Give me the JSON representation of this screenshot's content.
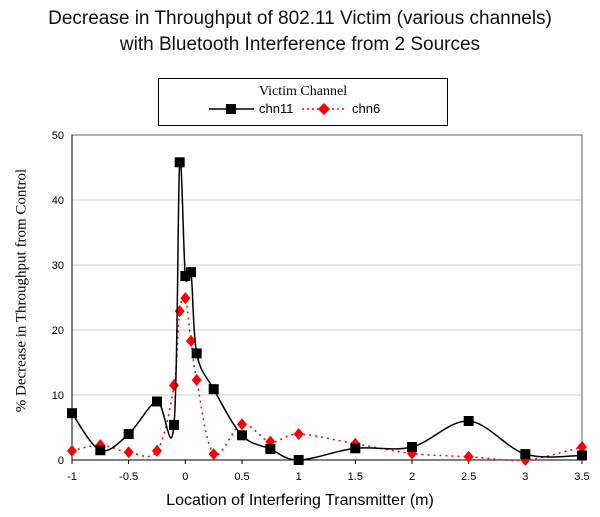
{
  "chart_data": {
    "type": "line",
    "title": [
      "Decrease in Throughput of 802.11 Victim (various channels)",
      "with Bluetooth Interference from 2 Sources"
    ],
    "xlabel": "Location of Interfering Transmitter (m)",
    "ylabel": "% Decrease in Throughput from Control",
    "legend_title": "Victim Channel",
    "legend_position": "top-center",
    "xlim": [
      -1,
      3.5
    ],
    "ylim": [
      0,
      50
    ],
    "xticks": [
      "-1",
      "-0.5",
      "0",
      "0.5",
      "1",
      "1.5",
      "2",
      "2.5",
      "3",
      "3.5"
    ],
    "xtick_values": [
      -1,
      -0.5,
      0,
      0.5,
      1,
      1.5,
      2,
      2.5,
      3,
      3.5
    ],
    "yticks": [
      "0",
      "10",
      "20",
      "30",
      "40",
      "50"
    ],
    "ytick_values": [
      0,
      10,
      20,
      30,
      40,
      50
    ],
    "grid": "horizontal",
    "x": [
      -1,
      -0.75,
      -0.5,
      -0.25,
      -0.1,
      -0.05,
      0,
      0.05,
      0.1,
      0.25,
      0.5,
      0.75,
      1,
      1.5,
      2,
      2.5,
      3,
      3.5
    ],
    "series": [
      {
        "name": "chn11",
        "color": "#000000",
        "marker": "square",
        "values": [
          7.2,
          1.5,
          4.0,
          9.0,
          5.4,
          45.8,
          28.3,
          28.9,
          16.4,
          10.9,
          3.8,
          1.7,
          0,
          1.8,
          2.0,
          6.0,
          0.9,
          0.7
        ]
      },
      {
        "name": "chn6",
        "color": "#ff0000",
        "marker": "diamond",
        "values": [
          1.4,
          2.3,
          1.2,
          1.4,
          11.5,
          22.9,
          24.9,
          18.3,
          12.3,
          0.9,
          5.5,
          2.8,
          4.0,
          2.5,
          1.0,
          0.5,
          0,
          2.0
        ]
      }
    ]
  }
}
